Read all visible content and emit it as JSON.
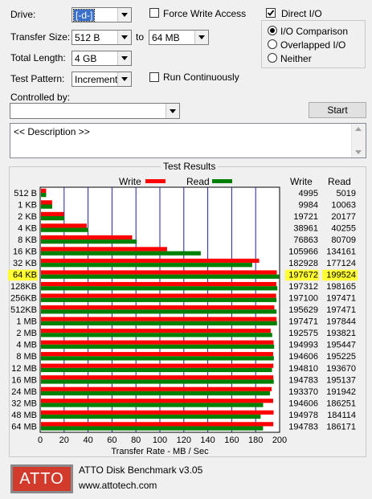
{
  "form": {
    "drive_label": "Drive:",
    "drive_value": "[-d-]",
    "transfer_size_label": "Transfer Size:",
    "transfer_from": "512 B",
    "to_label": "to",
    "transfer_to": "64 MB",
    "total_length_label": "Total Length:",
    "total_length": "4 GB",
    "test_pattern_label": "Test Pattern:",
    "test_pattern": "Increment",
    "controlled_by_label": "Controlled by:",
    "controlled_by_value": "",
    "force_write_access": "Force Write Access",
    "run_continuously": "Run Continuously",
    "direct_io": "Direct I/O",
    "io_comparison": "I/O Comparison",
    "overlapped_io": "Overlapped I/O",
    "neither": "Neither",
    "start_button": "Start",
    "description": "<< Description >>"
  },
  "checkboxes": {
    "force_write_access": false,
    "run_continuously": false,
    "direct_io": true
  },
  "radio_selected": "io_comparison",
  "results": {
    "group_title": "Test Results",
    "legend_write": "Write",
    "legend_read": "Read",
    "col_write": "Write",
    "col_read": "Read",
    "highlight_row": "64 KB",
    "colors": {
      "write": "#ff0000",
      "read": "#008000",
      "highlight": "#ffff33"
    }
  },
  "chart_data": {
    "type": "bar",
    "orientation": "horizontal",
    "xlabel": "Transfer Rate - MB / Sec",
    "xlim": [
      0,
      200
    ],
    "xticks": [
      "0",
      "20",
      "40",
      "60",
      "80",
      "100",
      "120",
      "140",
      "160",
      "180",
      "200"
    ],
    "categories": [
      "512 B",
      "1 KB",
      "2 KB",
      "4 KB",
      "8 KB",
      "16 KB",
      "32 KB",
      "64 KB",
      "128KB",
      "256KB",
      "512KB",
      "1 MB",
      "2 MB",
      "4 MB",
      "8 MB",
      "12 MB",
      "16 MB",
      "24 MB",
      "32 MB",
      "48 MB",
      "64 MB"
    ],
    "series": [
      {
        "name": "Write",
        "values": [
          4995,
          9984,
          19721,
          38961,
          76863,
          105966,
          182928,
          197672,
          197312,
          197100,
          195629,
          197471,
          192575,
          194993,
          194606,
          194810,
          194783,
          193370,
          194606,
          194978,
          194783
        ]
      },
      {
        "name": "Read",
        "values": [
          5019,
          10063,
          20177,
          40255,
          80709,
          134161,
          177124,
          199524,
          198165,
          197471,
          197471,
          197844,
          193821,
          195447,
          195225,
          193670,
          195137,
          191942,
          186251,
          184114,
          186171
        ]
      }
    ],
    "value_unit_note": "KB/s",
    "grid": true
  },
  "footer": {
    "logo_text": "ATTO",
    "app_title": "ATTO Disk Benchmark v3.05",
    "url": "www.attotech.com"
  }
}
